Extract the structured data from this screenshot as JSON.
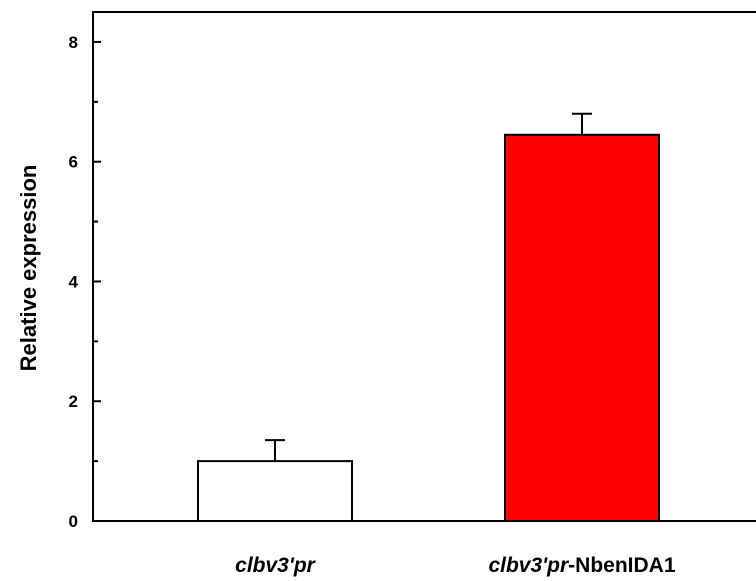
{
  "chart_data": {
    "type": "bar",
    "categories": [
      {
        "italic": "clbv3'pr",
        "plain": ""
      },
      {
        "italic": "clbv3'pr",
        "plain": "-NbenIDA1"
      }
    ],
    "values": [
      1.0,
      6.45
    ],
    "errors": [
      0.35,
      0.35
    ],
    "bar_colors": [
      "#ffffff",
      "#ff0000"
    ],
    "ylabel": "Relative expression",
    "ylim": [
      0,
      8.5
    ],
    "yticks": [
      0,
      2,
      4,
      6,
      8
    ],
    "minor_yticks": [
      1,
      3,
      5,
      7
    ],
    "grid": false
  }
}
